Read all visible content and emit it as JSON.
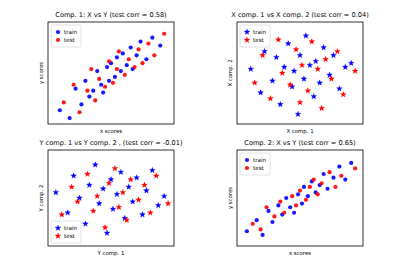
{
  "chart_data": [
    {
      "type": "scatter",
      "title": "Comp. 1: X vs Y (test corr = 0.58)",
      "x_label": "x scores",
      "y_label": "y scores",
      "xlim": [
        -3.2,
        3.2
      ],
      "ylim": [
        -2.6,
        2.6
      ],
      "tick_labels": false,
      "legend": "upper left",
      "series": [
        {
          "name": "train",
          "color": "#0000ff",
          "marker": "circle",
          "x": [
            -2.6,
            -2.1,
            -1.8,
            -1.5,
            -1.3,
            -1.1,
            -0.9,
            -0.7,
            -0.5,
            -0.4,
            -0.2,
            -0.1,
            0.0,
            0.2,
            0.3,
            0.5,
            0.6,
            0.8,
            1.0,
            1.1,
            1.3,
            1.5,
            1.8,
            2.1,
            2.5
          ],
          "values": [
            -1.9,
            -2.3,
            -0.8,
            -1.6,
            -0.4,
            -1.2,
            -0.9,
            0.1,
            -0.6,
            -1.0,
            0.3,
            -0.4,
            0.5,
            -0.2,
            0.8,
            0.1,
            1.0,
            0.4,
            1.3,
            0.2,
            0.9,
            1.6,
            0.7,
            1.8,
            1.4
          ]
        },
        {
          "name": "test",
          "color": "#ff0000",
          "marker": "circle",
          "x": [
            -2.4,
            -1.9,
            -1.6,
            -1.2,
            -1.0,
            -0.8,
            -0.6,
            -0.3,
            -0.1,
            0.1,
            0.3,
            0.4,
            0.7,
            0.9,
            1.2,
            1.4,
            1.6,
            1.9,
            2.2,
            2.7
          ],
          "values": [
            -1.5,
            -0.6,
            -2.0,
            -0.9,
            0.2,
            -1.4,
            -0.3,
            -0.7,
            0.6,
            -0.5,
            0.2,
            1.1,
            -0.1,
            0.7,
            0.3,
            1.2,
            0.5,
            1.5,
            0.9,
            2.0
          ]
        }
      ]
    },
    {
      "type": "scatter",
      "title": "X comp. 1 vs X comp. 2 (test corr = 0.04)",
      "x_label": "X comp. 1",
      "y_label": "X comp. 2",
      "xlim": [
        -3.2,
        3.2
      ],
      "ylim": [
        -2.6,
        2.6
      ],
      "tick_labels": false,
      "legend": "upper left",
      "series": [
        {
          "name": "train",
          "color": "#0000ff",
          "marker": "star",
          "x": [
            -2.5,
            -2.0,
            -1.8,
            -1.4,
            -1.2,
            -1.0,
            -0.8,
            -0.6,
            -0.4,
            -0.3,
            -0.1,
            0.0,
            0.2,
            0.3,
            0.5,
            0.7,
            0.8,
            1.0,
            1.2,
            1.5,
            1.7,
            2.0,
            2.3,
            2.6
          ],
          "values": [
            0.2,
            -1.0,
            1.1,
            -0.4,
            0.8,
            -1.6,
            0.3,
            1.5,
            -0.7,
            0.1,
            -2.1,
            0.9,
            -0.3,
            1.9,
            0.4,
            -1.2,
            0.6,
            -0.5,
            1.3,
            -0.1,
            0.9,
            -0.8,
            0.3,
            0.5
          ]
        },
        {
          "name": "test",
          "color": "#ff0000",
          "marker": "star",
          "x": [
            -2.3,
            -1.9,
            -1.5,
            -1.1,
            -0.9,
            -0.5,
            -0.2,
            0.0,
            0.1,
            0.4,
            0.6,
            0.9,
            1.1,
            1.3,
            1.6,
            1.9,
            2.2,
            2.8
          ],
          "values": [
            -0.5,
            0.9,
            -1.3,
            1.7,
            0.0,
            -0.6,
            1.2,
            -1.5,
            0.4,
            -0.9,
            1.6,
            0.2,
            -1.8,
            0.7,
            -0.3,
            1.1,
            -1.1,
            0.1
          ]
        }
      ]
    },
    {
      "type": "scatter",
      "title": "Y comp. 1 vs Y comp. 2 , (test corr = -0.01)",
      "x_label": "Y comp. 1",
      "y_label": "Y comp. 2",
      "xlim": [
        -3.2,
        3.2
      ],
      "ylim": [
        -2.6,
        2.6
      ],
      "tick_labels": false,
      "legend": "lower left",
      "series": [
        {
          "name": "train",
          "color": "#0000ff",
          "marker": "star",
          "x": [
            -2.8,
            -2.2,
            -1.9,
            -1.6,
            -1.3,
            -1.1,
            -0.8,
            -0.6,
            -0.4,
            -0.2,
            0.0,
            0.1,
            0.3,
            0.5,
            0.7,
            0.9,
            1.1,
            1.3,
            1.6,
            1.8,
            2.1,
            2.4,
            2.7
          ],
          "values": [
            0.3,
            -0.8,
            1.2,
            0.0,
            -1.4,
            0.7,
            1.8,
            -0.3,
            0.5,
            -1.9,
            1.0,
            -0.6,
            0.2,
            1.4,
            -1.1,
            0.6,
            -0.2,
            1.1,
            -0.9,
            0.4,
            1.5,
            -0.4,
            0.1
          ]
        },
        {
          "name": "test",
          "color": "#ff0000",
          "marker": "star",
          "x": [
            -2.5,
            -2.0,
            -1.7,
            -1.2,
            -0.9,
            -0.7,
            -0.3,
            -0.1,
            0.2,
            0.4,
            0.6,
            0.8,
            1.0,
            1.4,
            1.7,
            2.0,
            2.3,
            2.9
          ],
          "values": [
            -0.9,
            0.6,
            -0.2,
            1.3,
            -0.7,
            0.1,
            -1.6,
            0.8,
            1.6,
            -0.5,
            0.3,
            -1.2,
            1.0,
            -0.1,
            0.7,
            -0.8,
            1.2,
            -0.3
          ]
        }
      ]
    },
    {
      "type": "scatter",
      "title": "Comp. 2: X vs Y (test corr = 0.65)",
      "x_label": "x scores",
      "y_label": "y scores",
      "xlim": [
        -3.2,
        3.2
      ],
      "ylim": [
        -2.6,
        2.6
      ],
      "tick_labels": false,
      "legend": "upper left",
      "series": [
        {
          "name": "train",
          "color": "#0000ff",
          "marker": "circle",
          "x": [
            -2.7,
            -2.2,
            -1.9,
            -1.6,
            -1.4,
            -1.1,
            -0.9,
            -0.7,
            -0.5,
            -0.3,
            -0.1,
            0.1,
            0.2,
            0.4,
            0.6,
            0.8,
            1.0,
            1.2,
            1.4,
            1.7,
            2.0,
            2.3,
            2.6
          ],
          "values": [
            -1.8,
            -1.2,
            -2.0,
            -0.7,
            -1.3,
            -0.4,
            -0.9,
            0.0,
            -0.5,
            -0.8,
            0.2,
            -0.3,
            0.6,
            0.1,
            0.9,
            0.3,
            0.7,
            1.3,
            0.5,
            1.1,
            1.7,
            1.0,
            1.9
          ]
        },
        {
          "name": "test",
          "color": "#ff0000",
          "marker": "circle",
          "x": [
            -2.4,
            -2.0,
            -1.7,
            -1.3,
            -1.0,
            -0.8,
            -0.4,
            -0.2,
            0.0,
            0.3,
            0.5,
            0.7,
            0.9,
            1.1,
            1.5,
            1.8,
            2.1,
            2.8
          ],
          "values": [
            -1.4,
            -1.7,
            -0.5,
            -1.0,
            -0.2,
            -0.8,
            0.1,
            -0.4,
            0.4,
            -0.1,
            0.6,
            1.0,
            0.2,
            0.8,
            1.4,
            0.6,
            1.2,
            1.6
          ]
        }
      ]
    }
  ]
}
